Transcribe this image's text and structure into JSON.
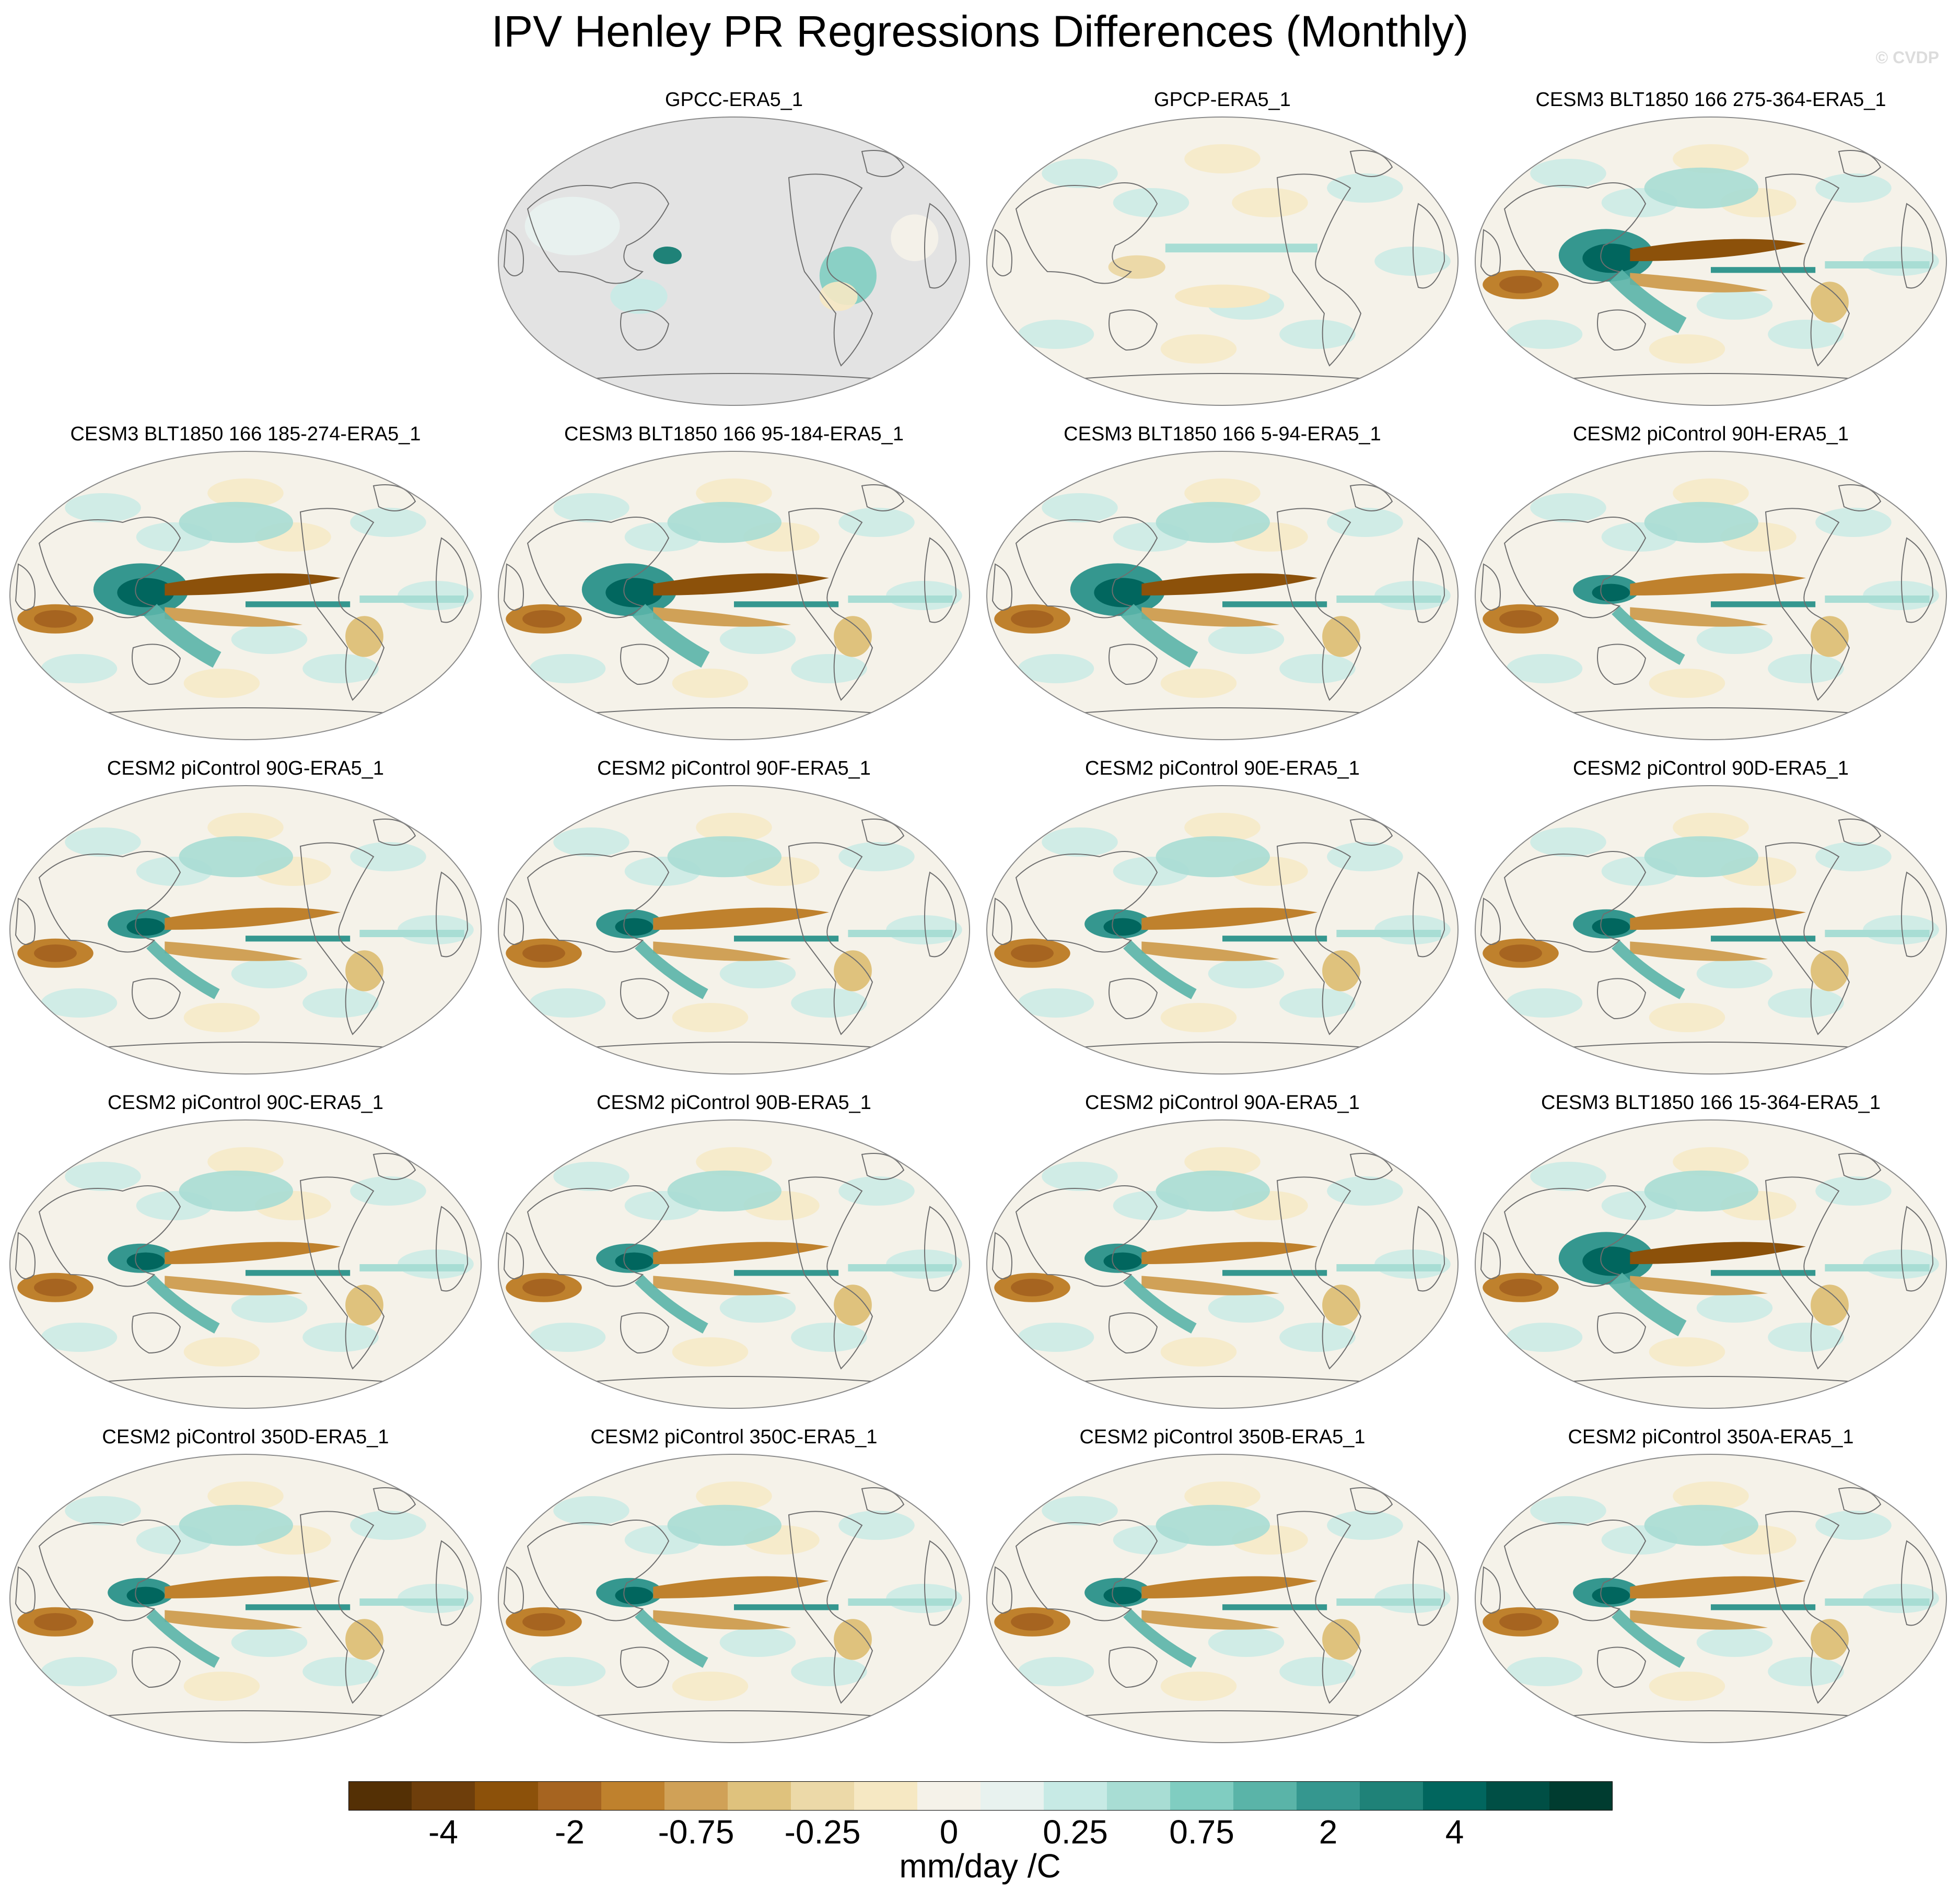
{
  "title": "IPV Henley PR Regressions Differences (Monthly)",
  "watermark": "© CVDP",
  "panels": [
    {
      "label": "GPCC-ERA5_1",
      "style": "land"
    },
    {
      "label": "GPCP-ERA5_1",
      "style": "weak"
    },
    {
      "label": "CESM3 BLT1850 166 275-364-ERA5_1",
      "style": "strong"
    },
    {
      "label": "CESM3 BLT1850 166 185-274-ERA5_1",
      "style": "strong"
    },
    {
      "label": "CESM3 BLT1850 166 95-184-ERA5_1",
      "style": "strong"
    },
    {
      "label": "CESM3 BLT1850 166 5-94-ERA5_1",
      "style": "strong"
    },
    {
      "label": "CESM2 piControl 90H-ERA5_1",
      "style": "medium"
    },
    {
      "label": "CESM2 piControl 90G-ERA5_1",
      "style": "medium"
    },
    {
      "label": "CESM2 piControl 90F-ERA5_1",
      "style": "medium"
    },
    {
      "label": "CESM2 piControl 90E-ERA5_1",
      "style": "medium"
    },
    {
      "label": "CESM2 piControl 90D-ERA5_1",
      "style": "medium"
    },
    {
      "label": "CESM2 piControl 90C-ERA5_1",
      "style": "medium"
    },
    {
      "label": "CESM2 piControl 90B-ERA5_1",
      "style": "medium"
    },
    {
      "label": "CESM2 piControl 90A-ERA5_1",
      "style": "medium"
    },
    {
      "label": "CESM3 BLT1850 166 15-364-ERA5_1",
      "style": "strong"
    },
    {
      "label": "CESM2 piControl 350D-ERA5_1",
      "style": "medium"
    },
    {
      "label": "CESM2 piControl 350C-ERA5_1",
      "style": "medium"
    },
    {
      "label": "CESM2 piControl 350B-ERA5_1",
      "style": "medium"
    },
    {
      "label": "CESM2 piControl 350A-ERA5_1",
      "style": "medium"
    }
  ],
  "colorbar": {
    "colors": [
      "#543005",
      "#6e3e0b",
      "#8c510a",
      "#a66420",
      "#bf812d",
      "#d0a157",
      "#dfc27d",
      "#ecd9a8",
      "#f6e8c3",
      "#f5f2e9",
      "#e8f2ef",
      "#c7eae5",
      "#a8ddd4",
      "#80cdc1",
      "#5ab4a8",
      "#35978f",
      "#1f8278",
      "#01665e",
      "#004f45",
      "#003c30"
    ],
    "tick_labels": [
      "-4",
      "-2",
      "-0.75",
      "-0.25",
      "0",
      "0.25",
      "0.75",
      "2",
      "4"
    ],
    "tick_boundaries": [
      2,
      4,
      6,
      8,
      10,
      12,
      14,
      16,
      18
    ],
    "units": "mm/day /C"
  }
}
